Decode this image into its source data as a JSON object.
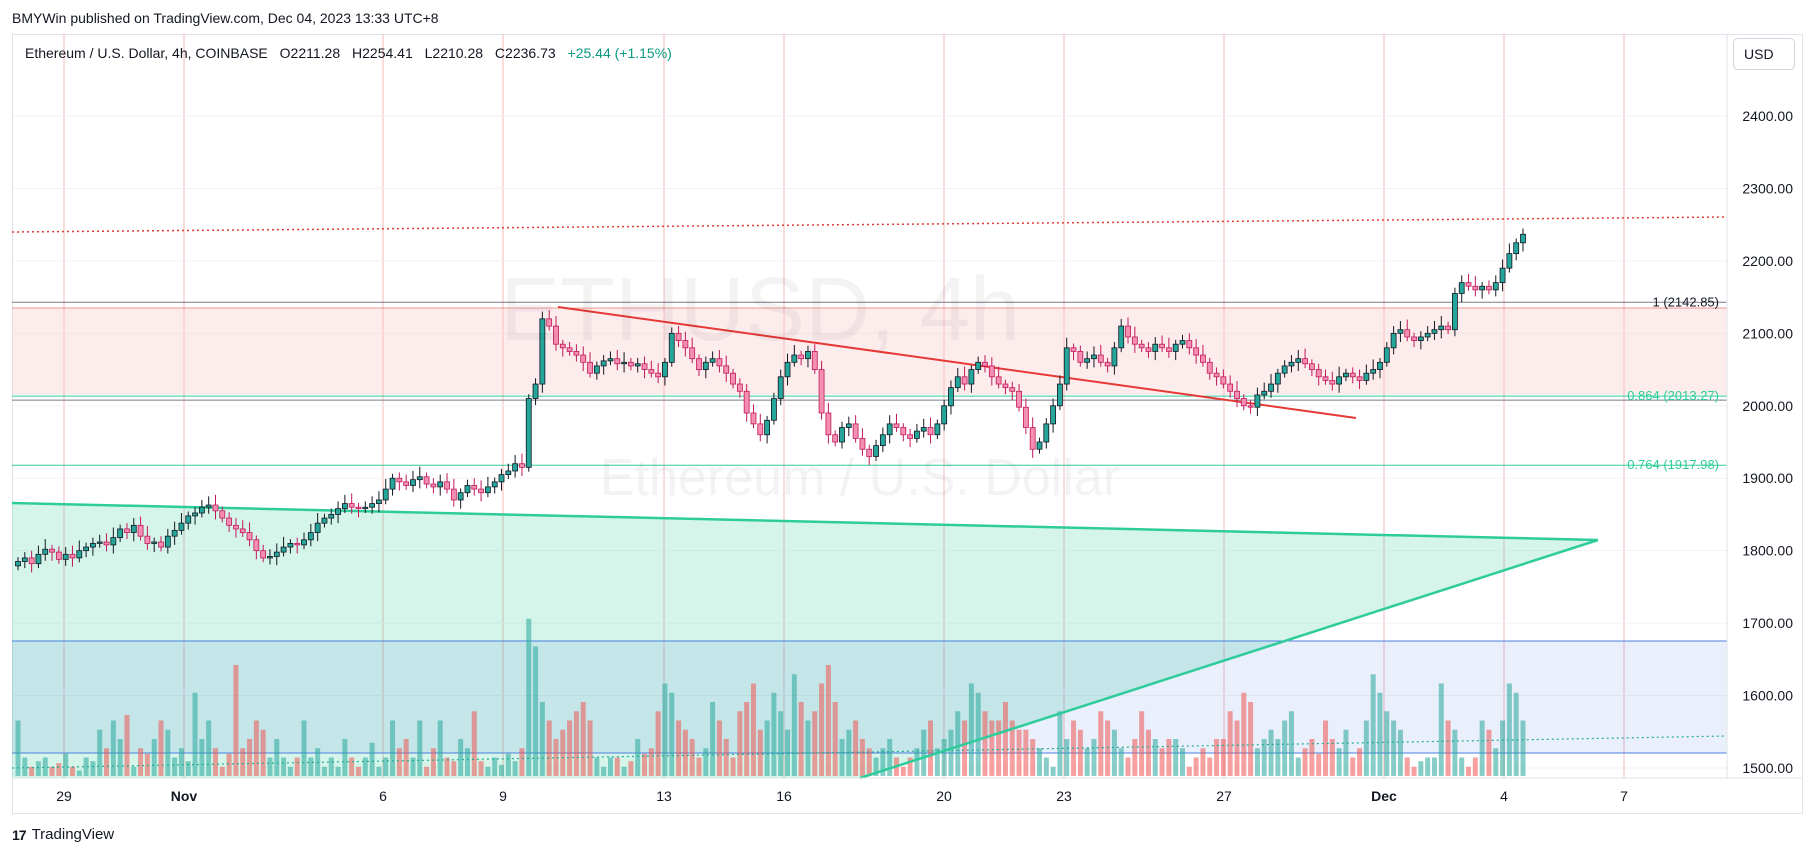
{
  "header": {
    "published_text": "BMYWin published on TradingView.com, Dec 04, 2023 13:33 UTC+8"
  },
  "legend": {
    "symbol": "Ethereum / U.S. Dollar, 4h, COINBASE",
    "open": "O2211.28",
    "high": "H2254.41",
    "low": "L2210.28",
    "close": "C2236.73",
    "change": "+25.44 (+1.15%)"
  },
  "currency_button": "USD",
  "watermark": {
    "ticker": "ETHUSD, 4h",
    "name": "Ethereum / U.S. Dollar"
  },
  "footer": {
    "logo": "17",
    "brand": "TradingView"
  },
  "colors": {
    "up": "#26a69a",
    "down": "#ef5350",
    "fib_red_line": "#e53935",
    "fib_green_line": "#2ecc9a",
    "triangle": "#2ecc9a",
    "blue_zone": "#4a7fe0"
  },
  "chart_data": {
    "type": "candlestick",
    "title": "Ethereum / U.S. Dollar, 4h, COINBASE",
    "y_ticks": [
      "2400.00",
      "2300.00",
      "2200.00",
      "2100.00",
      "2000.00",
      "1900.00",
      "1800.00",
      "1700.00",
      "1600.00",
      "1500.00"
    ],
    "ylim": [
      1485,
      2505
    ],
    "x_ticks": [
      "29",
      "Nov",
      "6",
      "9",
      "13",
      "16",
      "20",
      "23",
      "27",
      "Dec",
      "4",
      "7"
    ],
    "fib_levels": [
      {
        "label": "1 (2142.85)",
        "value": 2142.85
      },
      {
        "label": "0.864 (2013.27)",
        "value": 2013.27
      },
      {
        "label": "0.764 (1917.98)",
        "value": 1917.98
      }
    ],
    "resistance_dotted": 2260,
    "support_zone": [
      2015,
      2135
    ],
    "candles_close": [
      1785,
      1790,
      1782,
      1795,
      1802,
      1798,
      1788,
      1795,
      1790,
      1800,
      1805,
      1810,
      1812,
      1808,
      1818,
      1830,
      1825,
      1835,
      1820,
      1810,
      1812,
      1805,
      1820,
      1828,
      1838,
      1848,
      1852,
      1860,
      1863,
      1855,
      1845,
      1835,
      1830,
      1825,
      1815,
      1800,
      1790,
      1792,
      1798,
      1805,
      1810,
      1808,
      1815,
      1825,
      1838,
      1845,
      1850,
      1858,
      1865,
      1860,
      1858,
      1860,
      1865,
      1870,
      1885,
      1900,
      1895,
      1890,
      1898,
      1902,
      1892,
      1888,
      1895,
      1885,
      1870,
      1880,
      1890,
      1885,
      1880,
      1888,
      1895,
      1905,
      1910,
      1920,
      1915,
      2010,
      2030,
      2120,
      2110,
      2085,
      2080,
      2075,
      2070,
      2060,
      2045,
      2055,
      2062,
      2065,
      2058,
      2060,
      2055,
      2058,
      2050,
      2045,
      2040,
      2060,
      2100,
      2090,
      2080,
      2065,
      2050,
      2060,
      2065,
      2055,
      2045,
      2030,
      2020,
      1990,
      1975,
      1960,
      1980,
      2010,
      2040,
      2060,
      2070,
      2065,
      2075,
      2050,
      1990,
      1960,
      1950,
      1970,
      1975,
      1955,
      1940,
      1930,
      1945,
      1960,
      1975,
      1970,
      1960,
      1955,
      1965,
      1970,
      1960,
      1975,
      2000,
      2025,
      2040,
      2030,
      2050,
      2060,
      2055,
      2040,
      2030,
      2025,
      2020,
      1998,
      1970,
      1940,
      1950,
      1975,
      2000,
      2030,
      2080,
      2075,
      2060,
      2065,
      2070,
      2060,
      2055,
      2080,
      2110,
      2095,
      2085,
      2080,
      2075,
      2085,
      2080,
      2075,
      2085,
      2090,
      2080,
      2070,
      2060,
      2045,
      2040,
      2030,
      2020,
      2010,
      2000,
      1998,
      2015,
      2020,
      2030,
      2045,
      2055,
      2060,
      2065,
      2058,
      2050,
      2040,
      2035,
      2030,
      2040,
      2045,
      2040,
      2035,
      2045,
      2050,
      2060,
      2080,
      2100,
      2105,
      2095,
      2090,
      2095,
      2100,
      2105,
      2110,
      2105,
      2155,
      2170,
      2165,
      2160,
      2165,
      2160,
      2170,
      2190,
      2210,
      2225,
      2236.73
    ],
    "volume_rel": [
      0.3,
      0.1,
      0.05,
      0.08,
      0.1,
      0.05,
      0.07,
      0.12,
      0.05,
      0.03,
      0.1,
      0.08,
      0.25,
      0.15,
      0.3,
      0.2,
      0.33,
      0.05,
      0.15,
      0.12,
      0.2,
      0.3,
      0.25,
      0.1,
      0.15,
      0.08,
      0.45,
      0.2,
      0.3,
      0.15,
      0.05,
      0.12,
      0.6,
      0.15,
      0.2,
      0.3,
      0.25,
      0.1,
      0.2,
      0.1,
      0.05,
      0.1,
      0.3,
      0.1,
      0.15,
      0.05,
      0.1,
      0.05,
      0.2,
      0.1,
      0.05,
      0.1,
      0.18,
      0.05,
      0.1,
      0.3,
      0.15,
      0.2,
      0.1,
      0.3,
      0.05,
      0.15,
      0.3,
      0.1,
      0.08,
      0.2,
      0.15,
      0.35,
      0.08,
      0.05,
      0.1,
      0.06,
      0.12,
      0.08,
      0.15,
      0.85,
      0.7,
      0.4,
      0.3,
      0.2,
      0.25,
      0.3,
      0.35,
      0.4,
      0.3,
      0.1,
      0.05,
      0.1,
      0.1,
      0.05,
      0.08,
      0.2,
      0.12,
      0.15,
      0.35,
      0.5,
      0.45,
      0.3,
      0.25,
      0.2,
      0.1,
      0.15,
      0.4,
      0.3,
      0.2,
      0.1,
      0.35,
      0.4,
      0.5,
      0.25,
      0.3,
      0.45,
      0.35,
      0.25,
      0.55,
      0.4,
      0.3,
      0.35,
      0.5,
      0.6,
      0.4,
      0.2,
      0.25,
      0.3,
      0.2,
      0.15,
      0.1,
      0.15,
      0.2,
      0.1,
      0.05,
      0.1,
      0.15,
      0.25,
      0.3,
      0.15,
      0.2,
      0.25,
      0.35,
      0.3,
      0.5,
      0.45,
      0.35,
      0.3,
      0.3,
      0.4,
      0.3,
      0.25,
      0.25,
      0.2,
      0.15,
      0.1,
      0.05,
      0.35,
      0.2,
      0.3,
      0.25,
      0.15,
      0.2,
      0.35,
      0.3,
      0.25,
      0.15,
      0.1,
      0.2,
      0.35,
      0.25,
      0.2,
      0.15,
      0.2,
      0.2,
      0.15,
      0.05,
      0.1,
      0.15,
      0.1,
      0.2,
      0.2,
      0.35,
      0.3,
      0.45,
      0.4,
      0.15,
      0.2,
      0.25,
      0.2,
      0.3,
      0.35,
      0.1,
      0.15,
      0.2,
      0.12,
      0.3,
      0.2,
      0.15,
      0.25,
      0.1,
      0.15,
      0.3,
      0.55,
      0.45,
      0.35,
      0.3,
      0.25,
      0.1,
      0.05,
      0.08,
      0.1,
      0.1,
      0.5,
      0.3,
      0.25,
      0.1,
      0.05,
      0.1,
      0.3,
      0.25,
      0.15,
      0.3,
      0.5,
      0.45,
      0.3
    ]
  }
}
